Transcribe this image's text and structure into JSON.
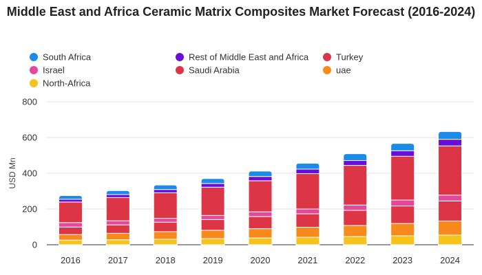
{
  "chart_data": {
    "type": "bar",
    "stacked": true,
    "title": "Middle East and Africa Ceramic Matrix Composites Market Forecast (2016-2024)",
    "ylabel": "USD Mn",
    "xlabel": "",
    "ylim": [
      0,
      800
    ],
    "yticks": [
      0,
      200,
      400,
      600,
      800
    ],
    "grid": true,
    "legend_position": "top",
    "categories": [
      "2016",
      "2017",
      "2018",
      "2019",
      "2020",
      "2021",
      "2022",
      "2023",
      "2024"
    ],
    "series": [
      {
        "name": "North-Africa",
        "color": "#f7c21b",
        "values": [
          26,
          28,
          31,
          34,
          38,
          42,
          46,
          50,
          54
        ]
      },
      {
        "name": "uae",
        "color": "#f78a1d",
        "values": [
          31,
          36,
          42,
          47,
          52,
          56,
          62,
          69,
          79
        ]
      },
      {
        "name": "Turkey",
        "color": "#dc3545",
        "values": [
          42,
          47,
          53,
          60,
          68,
          75,
          85,
          98,
          112
        ]
      },
      {
        "name": "Israel",
        "color": "#e3499b",
        "values": [
          25,
          23,
          22,
          23,
          26,
          27,
          29,
          33,
          33
        ]
      },
      {
        "name": "Saudi Arabia",
        "color": "#dc3545",
        "values": [
          115,
          130,
          143,
          158,
          174,
          198,
          222,
          245,
          275
        ]
      },
      {
        "name": "Rest of Middle East and Africa",
        "color": "#6a0ddb",
        "values": [
          16,
          17,
          18,
          21,
          24,
          25,
          27,
          31,
          37
        ]
      },
      {
        "name": "South Africa",
        "color": "#1a8be8",
        "values": [
          20,
          22,
          25,
          27,
          30,
          33,
          38,
          41,
          43
        ]
      }
    ],
    "legend": [
      {
        "name": "South Africa",
        "color": "#1a8be8"
      },
      {
        "name": "Rest of Middle East and Africa",
        "color": "#6a0ddb"
      },
      {
        "name": "Turkey",
        "color": "#dc3545"
      },
      {
        "name": "Israel",
        "color": "#e3499b"
      },
      {
        "name": "Saudi Arabia",
        "color": "#dc3545"
      },
      {
        "name": "uae",
        "color": "#f78a1d"
      },
      {
        "name": "North-Africa",
        "color": "#f7c21b"
      }
    ]
  }
}
